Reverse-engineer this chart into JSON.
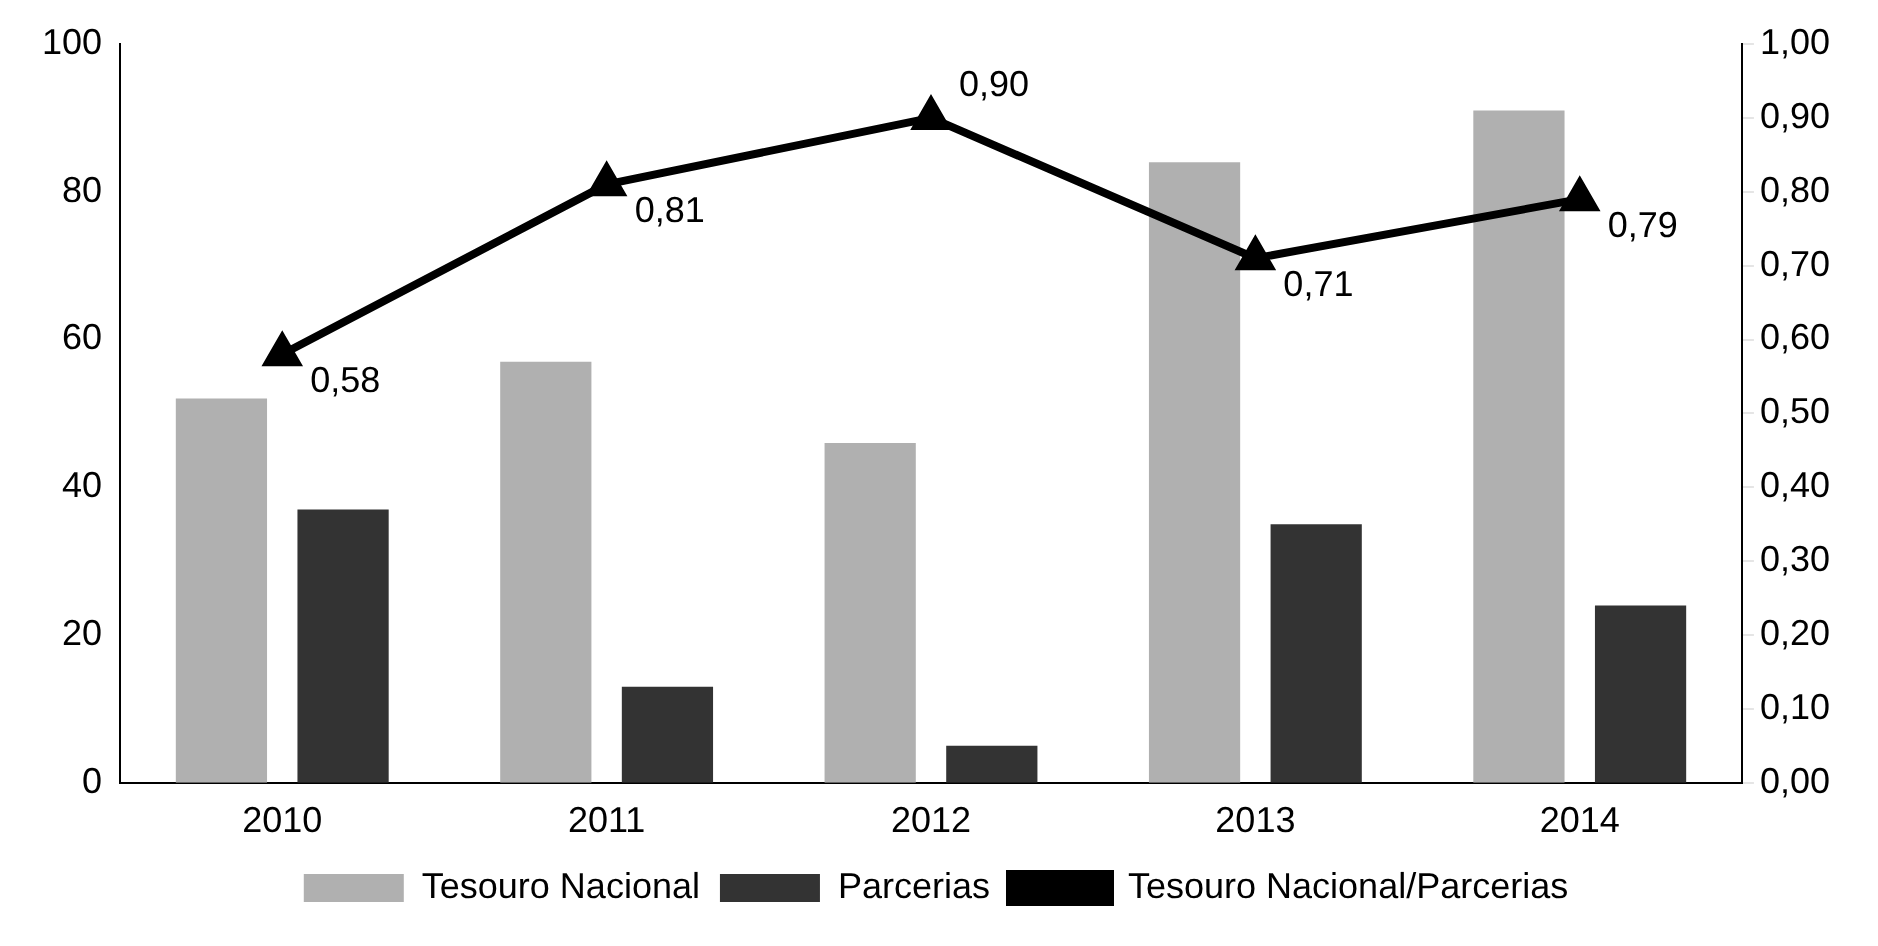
{
  "chart_data": {
    "type": "bar",
    "categories": [
      "2010",
      "2011",
      "2012",
      "2013",
      "2014"
    ],
    "series": [
      {
        "name": "Tesouro Nacional",
        "color": "#b0b0b0",
        "values": [
          52,
          57,
          46,
          84,
          91
        ]
      },
      {
        "name": "Parcerias",
        "color": "#333333",
        "values": [
          37,
          13,
          5,
          35,
          24
        ]
      },
      {
        "name": "Tesouro Nacional/Parcerias",
        "type": "line",
        "axis": "y2",
        "color": "#000000",
        "values": [
          0.58,
          0.81,
          0.9,
          0.71,
          0.79
        ],
        "value_labels": [
          "0,58",
          "0,81",
          "0,90",
          "0,71",
          "0,79"
        ]
      }
    ],
    "ylim": [
      0,
      100
    ],
    "yticks": [
      0,
      20,
      40,
      60,
      80,
      100
    ],
    "y2lim": [
      0,
      1
    ],
    "y2ticks": [
      {
        "value": 0,
        "label": "0,00"
      },
      {
        "value": 0.1,
        "label": "0,10"
      },
      {
        "value": 0.2,
        "label": "0,20"
      },
      {
        "value": 0.3,
        "label": "0,30"
      },
      {
        "value": 0.4,
        "label": "0,40"
      },
      {
        "value": 0.5,
        "label": "0,50"
      },
      {
        "value": 0.6,
        "label": "0,60"
      },
      {
        "value": 0.7,
        "label": "0,70"
      },
      {
        "value": 0.8,
        "label": "0,80"
      },
      {
        "value": 0.9,
        "label": "0,90"
      },
      {
        "value": 1,
        "label": "1,00"
      }
    ],
    "grid": false,
    "legend": "bottom",
    "marker": "triangle",
    "line_style": "solid"
  }
}
